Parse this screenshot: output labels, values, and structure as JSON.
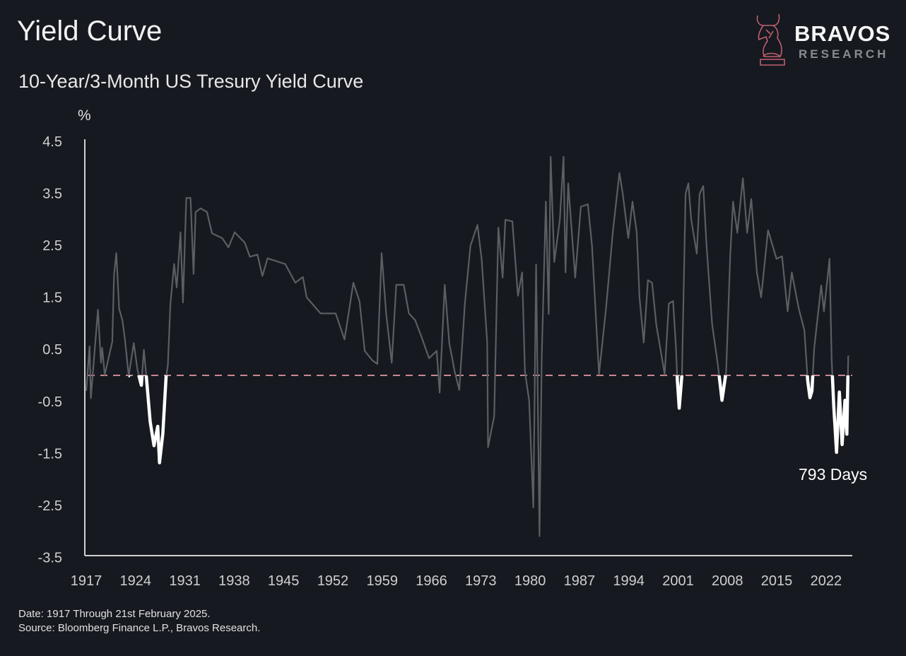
{
  "header": {
    "title": "Yield Curve",
    "subtitle": "10-Year/3-Month US Tresury Yield Curve"
  },
  "logo": {
    "brand": "BRAVOS",
    "sub": "RESEARCH",
    "icon": "bull-knight-icon",
    "color": "#c0606e"
  },
  "footer": {
    "date_note": "Date: 1917 Through 21st February 2025.",
    "source_note": "Source: Bloomberg Finance L.P., Bravos Research."
  },
  "colors": {
    "background": "#16191f",
    "line": "#5b5e63",
    "inversion": "#ffffff",
    "zero_line": "#c98790",
    "axis": "#d0d0d0"
  },
  "chart_data": {
    "type": "line",
    "title": "10-Year/3-Month US Tresury Yield Curve",
    "ylabel": "%",
    "xlabel": "",
    "ylim": [
      -3.5,
      4.5
    ],
    "xlim": [
      1917,
      2025.2
    ],
    "yticks": [
      "4.5",
      "3.5",
      "2.5",
      "1.5",
      "0.5",
      "-0.5",
      "-1.5",
      "-2.5",
      "-3.5"
    ],
    "xticks": [
      "1917",
      "1924",
      "1931",
      "1938",
      "1945",
      "1952",
      "1959",
      "1966",
      "1973",
      "1980",
      "1987",
      "1994",
      "2001",
      "2008",
      "2015",
      "2022"
    ],
    "grid": false,
    "reference_line": {
      "y": 0,
      "style": "dashed"
    },
    "highlighted_inversions": [
      [
        1923,
        1929
      ],
      [
        2000,
        2002
      ],
      [
        2006,
        2008.2
      ],
      [
        2019,
        2020
      ],
      [
        2022.6,
        2025.2
      ]
    ],
    "annotation": "793 Days",
    "series": [
      {
        "points": [
          [
            1917.0,
            -0.3
          ],
          [
            1917.48,
            0.56
          ],
          [
            1917.66,
            -0.44
          ],
          [
            1918.19,
            0.47
          ],
          [
            1918.66,
            1.26
          ],
          [
            1919.1,
            0.24
          ],
          [
            1919.27,
            0.53
          ],
          [
            1919.63,
            0.01
          ],
          [
            1920.17,
            0.33
          ],
          [
            1920.7,
            0.65
          ],
          [
            1920.95,
            1.94
          ],
          [
            1921.27,
            2.35
          ],
          [
            1921.67,
            1.28
          ],
          [
            1922.14,
            1.06
          ],
          [
            1922.5,
            0.69
          ],
          [
            1923.03,
            -0.01
          ],
          [
            1923.75,
            0.62
          ],
          [
            1924.28,
            0.1
          ],
          [
            1924.82,
            -0.19
          ],
          [
            1925.18,
            0.49
          ],
          [
            1925.54,
            -0.03
          ],
          [
            1926.08,
            -0.89
          ],
          [
            1926.62,
            -1.35
          ],
          [
            1927.15,
            -0.98
          ],
          [
            1927.4,
            -1.68
          ],
          [
            1927.87,
            -1.12
          ],
          [
            1928.33,
            -0.03
          ],
          [
            1928.58,
            0.19
          ],
          [
            1928.95,
            1.37
          ],
          [
            1929.48,
            2.14
          ],
          [
            1929.84,
            1.69
          ],
          [
            1930.38,
            2.75
          ],
          [
            1930.73,
            1.4
          ],
          [
            1931.2,
            3.41
          ],
          [
            1931.8,
            3.41
          ],
          [
            1932.24,
            1.95
          ],
          [
            1932.53,
            3.14
          ],
          [
            1933.24,
            3.21
          ],
          [
            1934.14,
            3.14
          ],
          [
            1934.85,
            2.73
          ],
          [
            1936.29,
            2.64
          ],
          [
            1937.18,
            2.46
          ],
          [
            1938.07,
            2.75
          ],
          [
            1939.5,
            2.55
          ],
          [
            1940.23,
            2.28
          ],
          [
            1941.3,
            2.32
          ],
          [
            1942.01,
            1.91
          ],
          [
            1942.74,
            2.25
          ],
          [
            1945.24,
            2.14
          ],
          [
            1946.68,
            1.78
          ],
          [
            1947.75,
            1.89
          ],
          [
            1948.28,
            1.5
          ],
          [
            1950.26,
            1.19
          ],
          [
            1952.41,
            1.19
          ],
          [
            1953.66,
            0.69
          ],
          [
            1954.91,
            1.78
          ],
          [
            1955.8,
            1.42
          ],
          [
            1956.53,
            0.47
          ],
          [
            1957.6,
            0.29
          ],
          [
            1958.31,
            0.22
          ],
          [
            1958.93,
            2.35
          ],
          [
            1959.57,
            1.19
          ],
          [
            1960.36,
            0.24
          ],
          [
            1961.0,
            1.74
          ],
          [
            1962.08,
            1.74
          ],
          [
            1962.8,
            1.19
          ],
          [
            1963.69,
            1.06
          ],
          [
            1964.58,
            0.74
          ],
          [
            1965.66,
            0.33
          ],
          [
            1966.74,
            0.47
          ],
          [
            1967.16,
            -0.33
          ],
          [
            1967.88,
            1.74
          ],
          [
            1968.53,
            0.61
          ],
          [
            1968.96,
            0.32
          ],
          [
            1969.25,
            0.1
          ],
          [
            1969.95,
            -0.28
          ],
          [
            1970.74,
            1.38
          ],
          [
            1971.53,
            2.49
          ],
          [
            1972.53,
            2.89
          ],
          [
            1973.12,
            2.24
          ],
          [
            1973.91,
            0.63
          ],
          [
            1974.03,
            -1.38
          ],
          [
            1974.9,
            -0.78
          ],
          [
            1975.5,
            2.84
          ],
          [
            1976.1,
            1.88
          ],
          [
            1976.49,
            2.99
          ],
          [
            1977.48,
            2.96
          ],
          [
            1978.27,
            1.53
          ],
          [
            1978.87,
            1.98
          ],
          [
            1979.27,
            0.07
          ],
          [
            1979.86,
            -0.48
          ],
          [
            1980.46,
            -2.54
          ],
          [
            1980.85,
            2.13
          ],
          [
            1981.33,
            -3.09
          ],
          [
            1981.65,
            0.38
          ],
          [
            1982.24,
            3.34
          ],
          [
            1982.64,
            1.18
          ],
          [
            1982.92,
            4.2
          ],
          [
            1983.43,
            2.18
          ],
          [
            1984.22,
            2.99
          ],
          [
            1984.74,
            4.2
          ],
          [
            1985.02,
            1.98
          ],
          [
            1985.41,
            3.69
          ],
          [
            1986.4,
            1.88
          ],
          [
            1987.2,
            3.24
          ],
          [
            1988.19,
            3.29
          ],
          [
            1988.79,
            2.49
          ],
          [
            1989.78,
            0.02
          ],
          [
            1990.77,
            1.28
          ],
          [
            1991.76,
            2.79
          ],
          [
            1992.68,
            3.89
          ],
          [
            1993.15,
            3.49
          ],
          [
            1993.94,
            2.64
          ],
          [
            1994.53,
            3.34
          ],
          [
            1995.13,
            2.74
          ],
          [
            1995.53,
            1.5
          ],
          [
            1996.13,
            0.63
          ],
          [
            1996.72,
            1.83
          ],
          [
            1997.31,
            1.78
          ],
          [
            1997.9,
            0.98
          ],
          [
            1999.1,
            0.02
          ],
          [
            1999.69,
            1.38
          ],
          [
            2000.29,
            1.43
          ],
          [
            2000.68,
            0.58
          ],
          [
            2000.9,
            -0.1
          ],
          [
            2001.16,
            -0.63
          ],
          [
            2001.55,
            0.02
          ],
          [
            2002.07,
            3.49
          ],
          [
            2002.47,
            3.69
          ],
          [
            2002.87,
            2.99
          ],
          [
            2003.66,
            2.34
          ],
          [
            2004.06,
            3.49
          ],
          [
            2004.57,
            3.64
          ],
          [
            2005.04,
            2.49
          ],
          [
            2005.84,
            0.98
          ],
          [
            2006.63,
            0.22
          ],
          [
            2007.0,
            -0.2
          ],
          [
            2007.23,
            -0.48
          ],
          [
            2007.82,
            0.07
          ],
          [
            2008.41,
            2.34
          ],
          [
            2008.81,
            3.34
          ],
          [
            2009.41,
            2.74
          ],
          [
            2010.2,
            3.79
          ],
          [
            2010.8,
            2.74
          ],
          [
            2011.39,
            3.39
          ],
          [
            2012.19,
            1.98
          ],
          [
            2012.79,
            1.5
          ],
          [
            2013.77,
            2.79
          ],
          [
            2014.96,
            2.24
          ],
          [
            2015.76,
            2.29
          ],
          [
            2016.55,
            1.23
          ],
          [
            2017.14,
            1.98
          ],
          [
            2018.13,
            1.28
          ],
          [
            2018.93,
            0.87
          ],
          [
            2019.4,
            -0.1
          ],
          [
            2019.72,
            -0.43
          ],
          [
            2020.0,
            -0.3
          ],
          [
            2020.32,
            0.52
          ],
          [
            2021.31,
            1.73
          ],
          [
            2021.7,
            1.23
          ],
          [
            2022.5,
            2.24
          ],
          [
            2022.8,
            0.3
          ],
          [
            2023.1,
            -0.6
          ],
          [
            2023.49,
            -1.48
          ],
          [
            2023.89,
            -0.32
          ],
          [
            2024.28,
            -1.33
          ],
          [
            2024.68,
            -0.48
          ],
          [
            2024.95,
            -1.13
          ],
          [
            2025.15,
            0.38
          ]
        ]
      }
    ]
  }
}
